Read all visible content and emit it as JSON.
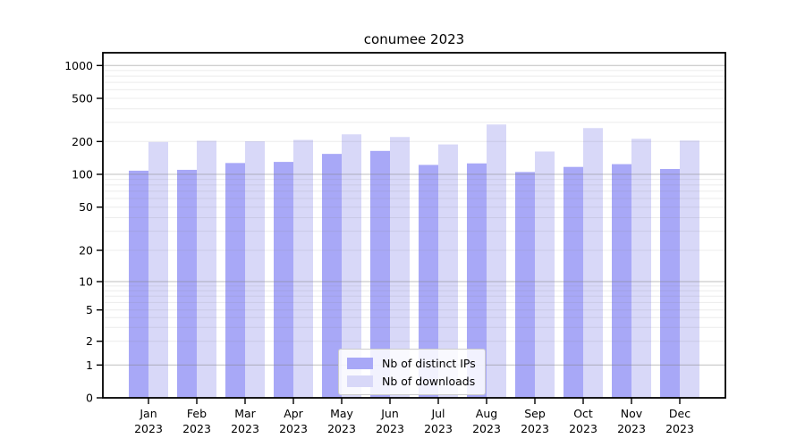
{
  "chart_data": {
    "type": "bar",
    "title": "conumee 2023",
    "scale": "symlog",
    "grid": true,
    "legend_position": "lower center",
    "categories": [
      "Jan",
      "Feb",
      "Mar",
      "Apr",
      "May",
      "Jun",
      "Jul",
      "Aug",
      "Sep",
      "Oct",
      "Nov",
      "Dec"
    ],
    "x_year": "2023",
    "yticks": [
      0,
      1,
      2,
      5,
      10,
      20,
      50,
      100,
      200,
      500,
      1000
    ],
    "ylim": [
      0,
      1300
    ],
    "series": [
      {
        "name": "Nb of distinct IPs",
        "color": "#a8a8f7",
        "values": [
          108,
          110,
          127,
          130,
          154,
          164,
          122,
          126,
          105,
          117,
          124,
          112
        ]
      },
      {
        "name": "Nb of downloads",
        "color": "#d8d8f8",
        "values": [
          198,
          203,
          201,
          207,
          233,
          220,
          188,
          287,
          162,
          266,
          212,
          204
        ]
      }
    ],
    "colors": {
      "minor_grid": "#ececec",
      "major_grid": "#bfbfbf",
      "axis": "#000000"
    }
  }
}
